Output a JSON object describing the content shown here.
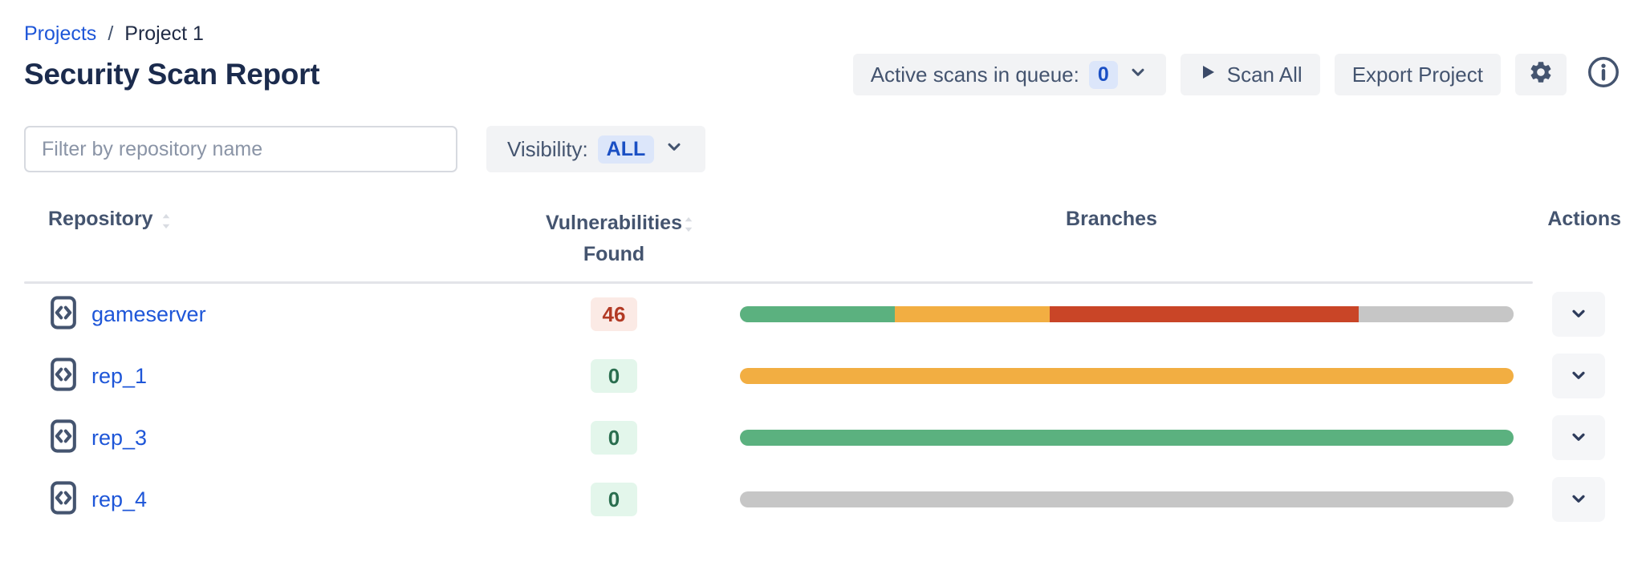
{
  "breadcrumb": {
    "link": "Projects",
    "separator": "/",
    "current": "Project 1"
  },
  "page_title": "Security Scan Report",
  "toolbar": {
    "active_scans_label": "Active scans in queue:",
    "active_scans_count": "0",
    "scan_all_label": "Scan All",
    "export_label": "Export Project",
    "settings_icon": "gear-icon",
    "info_icon": "info-circle-icon"
  },
  "filters": {
    "search_placeholder": "Filter by repository name",
    "search_value": "",
    "visibility_label": "Visibility:",
    "visibility_value": "ALL"
  },
  "table": {
    "header": {
      "repository": "Repository",
      "vulnerabilities": "Vulnerabilities Found",
      "branches": "Branches",
      "actions": "Actions"
    },
    "rows": [
      {
        "name": "gameserver",
        "vulnerabilities": "46",
        "badge_style": "danger",
        "branches": [
          {
            "status": "success",
            "pct": 20
          },
          {
            "status": "warning",
            "pct": 20
          },
          {
            "status": "failed",
            "pct": 40
          },
          {
            "status": "none",
            "pct": 20
          }
        ]
      },
      {
        "name": "rep_1",
        "vulnerabilities": "0",
        "badge_style": "success",
        "branches": [
          {
            "status": "warning",
            "pct": 100
          }
        ]
      },
      {
        "name": "rep_3",
        "vulnerabilities": "0",
        "badge_style": "success",
        "branches": [
          {
            "status": "success",
            "pct": 100
          }
        ]
      },
      {
        "name": "rep_4",
        "vulnerabilities": "0",
        "badge_style": "success",
        "branches": [
          {
            "status": "none",
            "pct": 100
          }
        ]
      }
    ]
  },
  "colors": {
    "link_blue": "#1e56d8",
    "title_navy": "#1b2b4d",
    "button_bg": "#f2f3f5",
    "count_badge_blue_bg": "#dce6fa",
    "count_badge_blue_text": "#1a4fc4",
    "danger_badge_bg": "#fbeae5",
    "danger_badge_text": "#b23a24",
    "success_badge_bg": "#e3f6eb",
    "success_badge_text": "#2a6e4f",
    "branch": {
      "success": "#5bb17f",
      "warning": "#f2ae42",
      "failed": "#c94527",
      "none": "#c6c6c6"
    }
  }
}
